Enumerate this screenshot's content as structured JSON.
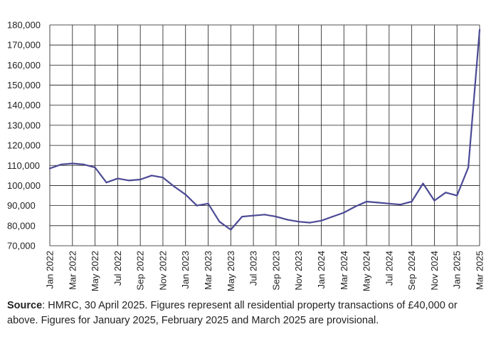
{
  "chart_data": {
    "type": "line",
    "title": "",
    "xlabel": "",
    "ylabel": "",
    "ylim": [
      70000,
      180000
    ],
    "y_ticks": [
      70000,
      80000,
      90000,
      100000,
      110000,
      120000,
      130000,
      140000,
      150000,
      160000,
      170000,
      180000
    ],
    "y_tick_labels": [
      "70,000",
      "80,000",
      "90,000",
      "100,000",
      "110,000",
      "120,000",
      "130,000",
      "140,000",
      "150,000",
      "160,000",
      "170,000",
      "180,000"
    ],
    "x_tick_labels": [
      "Jan 2022",
      "Mar 2022",
      "May 2022",
      "Jul 2022",
      "Sep 2022",
      "Nov 2022",
      "Jan 2023",
      "Mar 2023",
      "May 2023",
      "Jul 2023",
      "Sep 2023",
      "Nov 2023",
      "Jan 2024",
      "Mar 2024",
      "May 2024",
      "Jul 2024",
      "Sep 2024",
      "Nov 2024",
      "Jan 2025",
      "Mar 2025"
    ],
    "grid": true,
    "line_color": "#4b4a95",
    "series": [
      {
        "name": "",
        "x": [
          "Jan 2022",
          "Feb 2022",
          "Mar 2022",
          "Apr 2022",
          "May 2022",
          "Jun 2022",
          "Jul 2022",
          "Aug 2022",
          "Sep 2022",
          "Oct 2022",
          "Nov 2022",
          "Dec 2022",
          "Jan 2023",
          "Feb 2023",
          "Mar 2023",
          "Apr 2023",
          "May 2023",
          "Jun 2023",
          "Jul 2023",
          "Aug 2023",
          "Sep 2023",
          "Oct 2023",
          "Nov 2023",
          "Dec 2023",
          "Jan 2024",
          "Feb 2024",
          "Mar 2024",
          "Apr 2024",
          "May 2024",
          "Jun 2024",
          "Jul 2024",
          "Aug 2024",
          "Sep 2024",
          "Oct 2024",
          "Nov 2024",
          "Dec 2024",
          "Jan 2025",
          "Feb 2025",
          "Mar 2025"
        ],
        "values": [
          108500,
          110500,
          111000,
          110500,
          109000,
          101500,
          103500,
          102500,
          103000,
          105000,
          104000,
          99500,
          95500,
          90000,
          91000,
          82000,
          78000,
          84500,
          85000,
          85500,
          84500,
          83000,
          82000,
          81500,
          82500,
          84500,
          86500,
          89500,
          92000,
          91500,
          91000,
          90500,
          92000,
          101000,
          92500,
          96500,
          95000,
          109000,
          177500
        ]
      }
    ]
  },
  "footnote": {
    "source_label": "Source",
    "text": ": HMRC, 30 April 2025. Figures represent all residential property transactions of £40,000 or above. Figures for January 2025, February 2025 and March 2025 are provisional."
  }
}
